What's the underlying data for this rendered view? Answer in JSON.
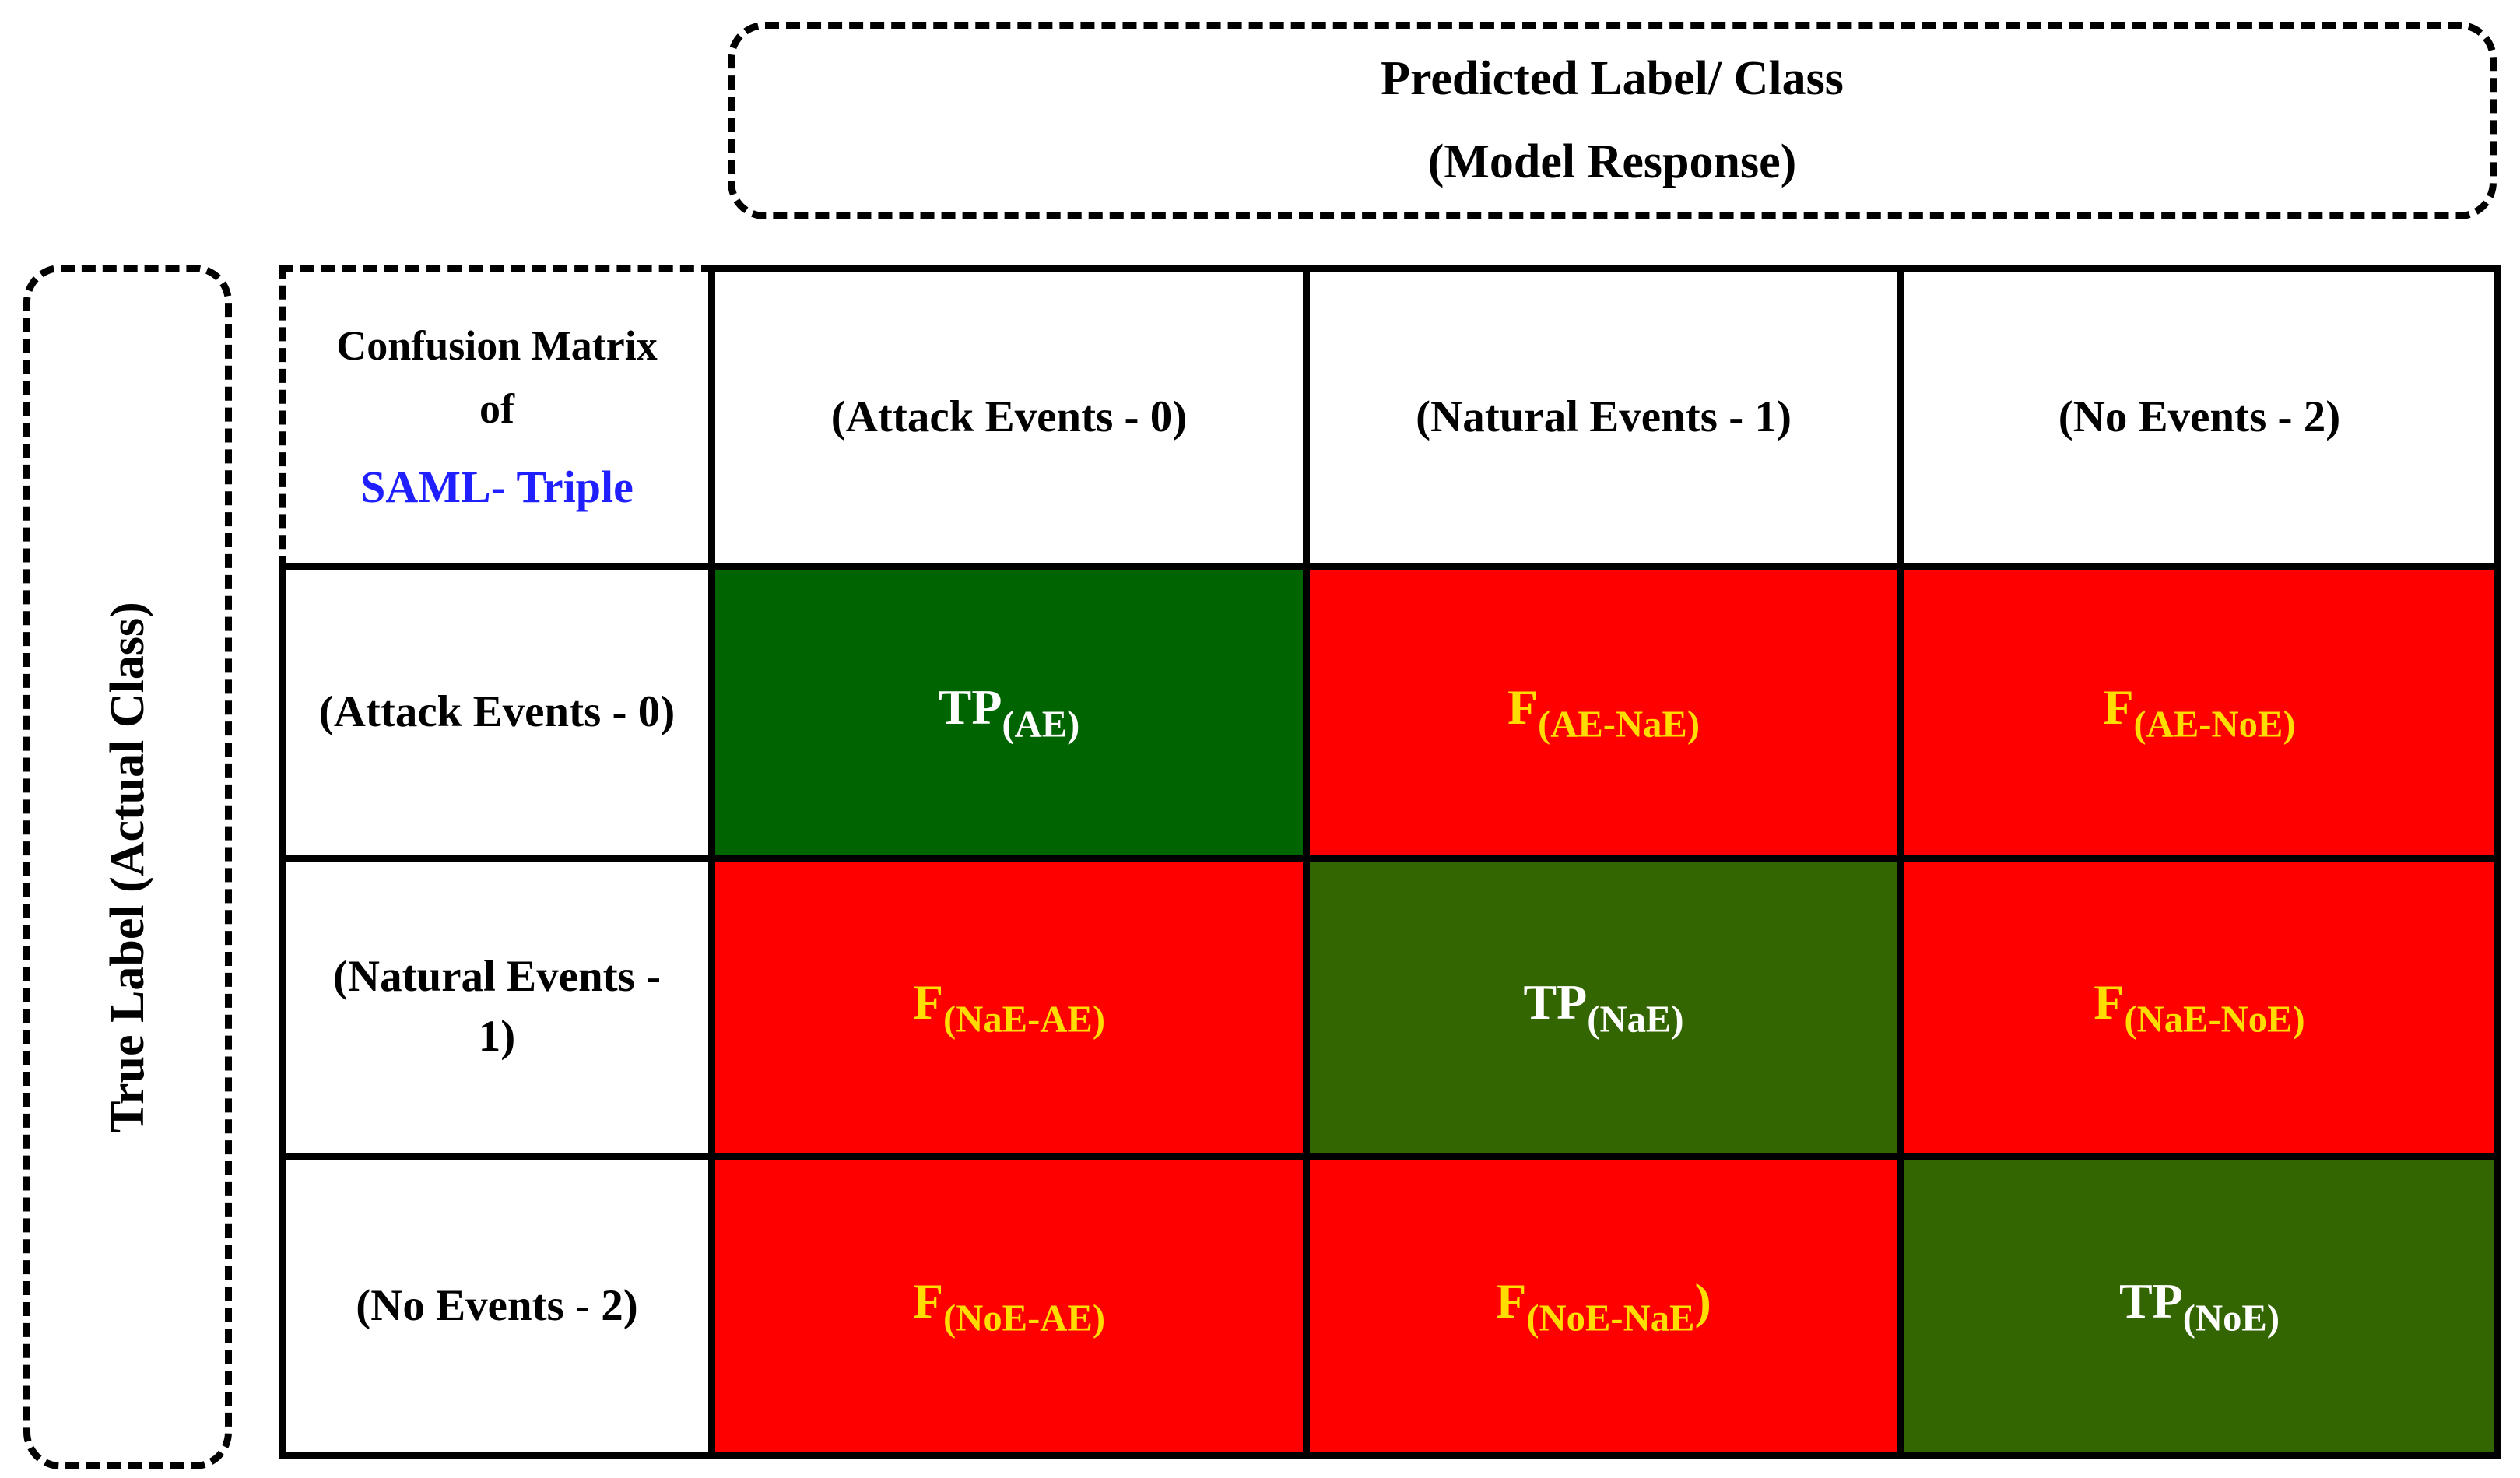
{
  "figure": {
    "predicted_box": {
      "line1": "Predicted Label/ Class",
      "line2": "(Model Response)"
    },
    "true_box": {
      "label": "True Label (Actual Class)"
    }
  },
  "matrix": {
    "corner": {
      "line1": "Confusion Matrix",
      "line2": "of",
      "brand": "SAML- Triple"
    },
    "col_headers": [
      "(Attack Events - 0)",
      "(Natural Events - 1)",
      "(No Events - 2)"
    ],
    "rows": [
      {
        "header": "(Attack Events - 0)",
        "cells": [
          {
            "main": "TP",
            "sub": "(AE)"
          },
          {
            "main": "F",
            "sub": "(AE-NaE)"
          },
          {
            "main": "F",
            "sub": "(AE-NoE)"
          }
        ]
      },
      {
        "header": "(Natural Events - 1)",
        "cells": [
          {
            "main": "F",
            "sub": "(NaE-AE)"
          },
          {
            "main": "TP",
            "sub": "(NaE)"
          },
          {
            "main": "F",
            "sub": "(NaE-NoE)"
          }
        ]
      },
      {
        "header": "(No Events - 2)",
        "cells": [
          {
            "main": "F",
            "sub": "(NoE-AE)"
          },
          {
            "main": "F",
            "sub": "(NoE-NaE",
            "after": ")"
          },
          {
            "main": "TP",
            "sub": "(NoE)"
          }
        ]
      }
    ]
  },
  "colors": {
    "line": "#000000",
    "tp-dark-green": "#006400",
    "tp-olive-green": "#336600",
    "false-red": "#FE0000",
    "false-text": "#FFDD00",
    "tp-text": "#FFFFFF",
    "brand-blue": "#1F1FFF"
  }
}
